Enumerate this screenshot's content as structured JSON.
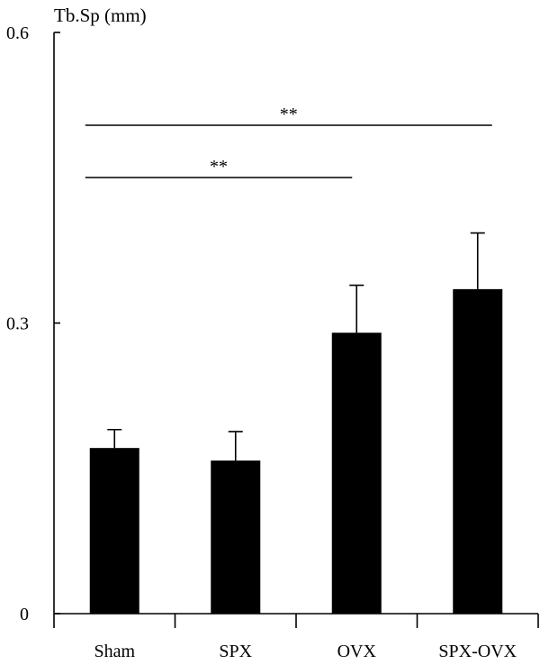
{
  "chart_data": {
    "type": "bar",
    "ylabel": "Tb.Sp (mm)",
    "ylim": [
      0,
      0.6
    ],
    "yticks": [
      {
        "value": 0,
        "label": "0"
      },
      {
        "value": 0.3,
        "label": "0.3"
      },
      {
        "value": 0.6,
        "label": "0.6"
      }
    ],
    "categories": [
      "Sham",
      "SPX",
      "OVX",
      "SPX-OVX"
    ],
    "values": [
      0.171,
      0.158,
      0.29,
      0.335
    ],
    "errors": [
      0.019,
      0.03,
      0.049,
      0.058
    ],
    "bar_color": "#000000",
    "grid": false,
    "significance": [
      {
        "from": "Sham",
        "to": "OVX",
        "label": "**"
      },
      {
        "from": "Sham",
        "to": "SPX-OVX",
        "label": "**"
      }
    ]
  }
}
